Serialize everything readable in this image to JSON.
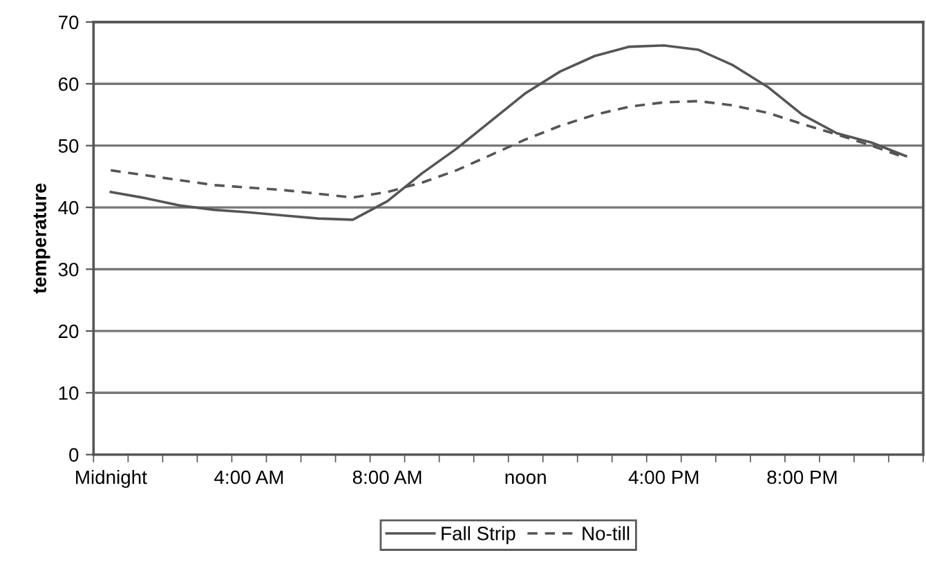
{
  "chart_data": {
    "type": "line",
    "ylabel": "temperature",
    "categories": [
      "Midnight",
      null,
      null,
      null,
      "4:00 AM",
      null,
      null,
      null,
      "8:00 AM",
      null,
      null,
      null,
      "noon",
      null,
      null,
      null,
      "4:00 PM",
      null,
      null,
      null,
      "8:00 PM",
      null,
      null,
      null
    ],
    "series": [
      {
        "name": "Fall Strip",
        "color": "#555555",
        "line_style": "solid",
        "values": [
          42.5,
          41.5,
          40.3,
          39.6,
          39.2,
          38.7,
          38.2,
          38,
          41,
          45.5,
          49.5,
          54,
          58.5,
          62,
          64.5,
          66,
          66.2,
          65.5,
          63,
          59.5,
          55,
          52,
          50.5,
          48.3
        ]
      },
      {
        "name": "No-till",
        "color": "#555555",
        "line_style": "dashed",
        "values": [
          46,
          45.2,
          44.4,
          43.6,
          43.2,
          42.8,
          42.2,
          41.6,
          42.5,
          44,
          46,
          48.5,
          51,
          53.2,
          55,
          56.3,
          57,
          57.2,
          56.5,
          55.3,
          53.5,
          51.8,
          50,
          48
        ]
      }
    ],
    "ylim": [
      0,
      70
    ],
    "yticks": [
      0,
      10,
      20,
      30,
      40,
      50,
      60,
      70
    ],
    "grid": "y",
    "legend": "bottom",
    "marker": "none"
  }
}
